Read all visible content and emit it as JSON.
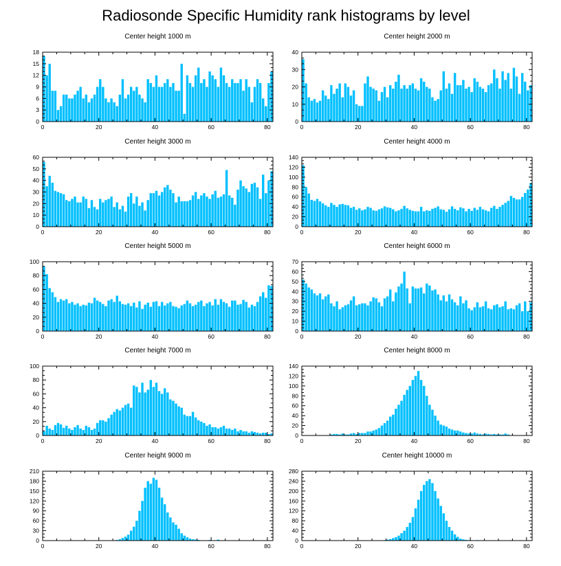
{
  "page_title": "Radiosonde Specific Humidity rank histograms by level",
  "bar_color": "#00BFFF",
  "chart_data": [
    {
      "type": "bar",
      "title": "Center height 1000 m",
      "xlim": [
        0,
        82
      ],
      "ylim": [
        0,
        18
      ],
      "xticks": [
        0,
        20,
        40,
        60,
        80
      ],
      "yticks": [
        0,
        3,
        6,
        9,
        12,
        15,
        18
      ],
      "values": [
        17,
        12,
        15,
        8,
        8,
        3,
        4,
        7,
        7,
        6,
        6,
        7,
        8,
        9,
        6,
        7,
        5,
        6,
        7,
        9,
        11,
        9,
        6,
        5,
        6,
        5,
        4,
        7,
        11,
        6,
        7,
        9,
        8,
        9,
        7,
        6,
        5,
        11,
        10,
        9,
        12,
        9,
        9,
        10,
        11,
        9,
        10,
        8,
        8,
        15,
        2,
        12,
        10,
        9,
        12,
        14,
        10,
        11,
        9,
        13,
        12,
        11,
        9,
        14,
        12,
        10,
        9,
        11,
        10,
        10,
        11,
        8,
        11,
        9,
        5,
        9,
        11,
        10,
        6,
        4,
        10,
        13
      ]
    },
    {
      "type": "bar",
      "title": "Center height 2000 m",
      "xlim": [
        0,
        82
      ],
      "ylim": [
        0,
        40
      ],
      "xticks": [
        0,
        20,
        40,
        60,
        80
      ],
      "yticks": [
        0,
        10,
        20,
        30,
        40
      ],
      "values": [
        36,
        22,
        14,
        12,
        13,
        11,
        12,
        18,
        15,
        13,
        21,
        16,
        19,
        22,
        14,
        22,
        20,
        15,
        18,
        10,
        9,
        9,
        22,
        26,
        20,
        19,
        18,
        12,
        17,
        20,
        14,
        21,
        19,
        23,
        27,
        19,
        21,
        19,
        21,
        22,
        19,
        18,
        25,
        23,
        20,
        19,
        14,
        12,
        13,
        18,
        29,
        19,
        22,
        16,
        28,
        21,
        21,
        24,
        19,
        20,
        17,
        25,
        23,
        20,
        19,
        17,
        21,
        22,
        30,
        25,
        19,
        29,
        24,
        28,
        19,
        31,
        26,
        16,
        28,
        23,
        18,
        21
      ]
    },
    {
      "type": "bar",
      "title": "Center height 3000 m",
      "xlim": [
        0,
        82
      ],
      "ylim": [
        0,
        60
      ],
      "xticks": [
        0,
        20,
        40,
        60,
        80
      ],
      "yticks": [
        0,
        10,
        20,
        30,
        40,
        50,
        60
      ],
      "values": [
        56,
        35,
        44,
        38,
        31,
        30,
        29,
        28,
        23,
        22,
        24,
        26,
        21,
        21,
        26,
        24,
        16,
        23,
        17,
        15,
        24,
        21,
        23,
        24,
        26,
        17,
        21,
        15,
        18,
        13,
        26,
        29,
        20,
        26,
        18,
        21,
        14,
        23,
        29,
        29,
        31,
        27,
        30,
        34,
        36,
        32,
        29,
        21,
        26,
        22,
        22,
        22,
        23,
        27,
        30,
        24,
        27,
        29,
        26,
        24,
        28,
        31,
        25,
        26,
        28,
        49,
        27,
        25,
        19,
        32,
        40,
        35,
        33,
        30,
        37,
        38,
        34,
        24,
        45,
        29,
        40,
        48
      ]
    },
    {
      "type": "bar",
      "title": "Center height 4000 m",
      "xlim": [
        0,
        82
      ],
      "ylim": [
        0,
        140
      ],
      "xticks": [
        0,
        20,
        40,
        60,
        80
      ],
      "yticks": [
        0,
        20,
        40,
        60,
        80,
        100,
        120,
        140
      ],
      "values": [
        124,
        80,
        67,
        54,
        52,
        56,
        51,
        47,
        43,
        40,
        48,
        44,
        40,
        45,
        46,
        44,
        43,
        38,
        40,
        34,
        37,
        33,
        35,
        40,
        38,
        33,
        32,
        35,
        37,
        41,
        39,
        38,
        35,
        31,
        33,
        36,
        42,
        37,
        34,
        32,
        31,
        31,
        40,
        31,
        33,
        32,
        36,
        38,
        41,
        35,
        34,
        30,
        35,
        41,
        36,
        33,
        39,
        37,
        31,
        36,
        32,
        38,
        34,
        40,
        35,
        33,
        31,
        38,
        42,
        36,
        40,
        44,
        48,
        52,
        62,
        58,
        55,
        55,
        60,
        68,
        75,
        88
      ]
    },
    {
      "type": "bar",
      "title": "Center height 5000 m",
      "xlim": [
        0,
        82
      ],
      "ylim": [
        0,
        100
      ],
      "xticks": [
        0,
        20,
        40,
        60,
        80
      ],
      "yticks": [
        0,
        20,
        40,
        60,
        80,
        100
      ],
      "values": [
        93,
        82,
        62,
        56,
        49,
        42,
        46,
        44,
        46,
        40,
        42,
        38,
        40,
        36,
        38,
        37,
        41,
        40,
        48,
        44,
        42,
        39,
        36,
        44,
        46,
        42,
        51,
        43,
        39,
        38,
        40,
        36,
        41,
        34,
        43,
        32,
        38,
        41,
        35,
        42,
        43,
        36,
        42,
        37,
        40,
        42,
        36,
        35,
        33,
        37,
        39,
        44,
        40,
        36,
        38,
        42,
        44,
        36,
        40,
        42,
        37,
        46,
        38,
        46,
        42,
        40,
        35,
        44,
        44,
        38,
        39,
        45,
        42,
        34,
        38,
        36,
        42,
        50,
        56,
        48,
        66,
        65
      ]
    },
    {
      "type": "bar",
      "title": "Center height 6000 m",
      "xlim": [
        0,
        82
      ],
      "ylim": [
        0,
        70
      ],
      "xticks": [
        0,
        20,
        40,
        60,
        80
      ],
      "yticks": [
        0,
        10,
        20,
        30,
        40,
        50,
        60,
        70
      ],
      "values": [
        52,
        48,
        44,
        42,
        38,
        36,
        38,
        32,
        35,
        37,
        28,
        25,
        30,
        22,
        24,
        26,
        27,
        31,
        35,
        26,
        27,
        28,
        28,
        26,
        30,
        34,
        33,
        29,
        25,
        33,
        35,
        42,
        30,
        39,
        45,
        48,
        60,
        43,
        28,
        45,
        43,
        43,
        44,
        38,
        48,
        46,
        41,
        42,
        37,
        31,
        36,
        30,
        37,
        32,
        29,
        26,
        35,
        28,
        31,
        23,
        21,
        24,
        29,
        24,
        25,
        30,
        23,
        22,
        26,
        27,
        24,
        25,
        30,
        22,
        23,
        22,
        26,
        28,
        20,
        30,
        20,
        29
      ]
    },
    {
      "type": "bar",
      "title": "Center height 7000 m",
      "xlim": [
        0,
        82
      ],
      "ylim": [
        0,
        100
      ],
      "xticks": [
        0,
        20,
        40,
        60,
        80
      ],
      "yticks": [
        0,
        20,
        40,
        60,
        80,
        100
      ],
      "values": [
        6,
        14,
        10,
        8,
        15,
        18,
        16,
        11,
        14,
        10,
        8,
        12,
        15,
        10,
        8,
        14,
        12,
        8,
        10,
        18,
        22,
        22,
        20,
        25,
        30,
        34,
        38,
        36,
        40,
        44,
        46,
        40,
        72,
        70,
        62,
        76,
        62,
        66,
        80,
        70,
        76,
        64,
        60,
        68,
        62,
        52,
        50,
        46,
        42,
        40,
        30,
        28,
        28,
        34,
        26,
        22,
        20,
        18,
        14,
        16,
        12,
        12,
        10,
        12,
        14,
        10,
        10,
        8,
        10,
        6,
        8,
        6,
        6,
        4,
        6,
        5,
        4,
        3,
        4,
        4,
        2,
        3
      ]
    },
    {
      "type": "bar",
      "title": "Center height 8000 m",
      "xlim": [
        0,
        82
      ],
      "ylim": [
        0,
        140
      ],
      "xticks": [
        0,
        20,
        40,
        60,
        80
      ],
      "yticks": [
        0,
        20,
        40,
        60,
        80,
        100,
        120,
        140
      ],
      "values": [
        0,
        0,
        0,
        0,
        0,
        0,
        0,
        0,
        0,
        0,
        2,
        3,
        3,
        2,
        4,
        2,
        2,
        4,
        5,
        3,
        5,
        5,
        5,
        8,
        8,
        10,
        12,
        15,
        20,
        25,
        30,
        38,
        42,
        54,
        62,
        70,
        82,
        92,
        100,
        112,
        120,
        130,
        112,
        100,
        80,
        62,
        52,
        40,
        30,
        22,
        20,
        18,
        14,
        12,
        10,
        10,
        8,
        6,
        5,
        4,
        4,
        6,
        4,
        3,
        2,
        4,
        3,
        2,
        3,
        2,
        2,
        2,
        4,
        2,
        0,
        0,
        0,
        0,
        0,
        0,
        0,
        0
      ]
    },
    {
      "type": "bar",
      "title": "Center height 9000 m",
      "xlim": [
        0,
        82
      ],
      "ylim": [
        0,
        210
      ],
      "xticks": [
        0,
        20,
        40,
        60,
        80
      ],
      "yticks": [
        0,
        30,
        60,
        90,
        120,
        150,
        180,
        210
      ],
      "values": [
        0,
        0,
        0,
        0,
        0,
        0,
        0,
        0,
        0,
        0,
        0,
        0,
        0,
        0,
        0,
        0,
        0,
        0,
        0,
        0,
        0,
        0,
        0,
        0,
        0,
        1,
        2,
        4,
        8,
        12,
        18,
        30,
        42,
        60,
        90,
        120,
        160,
        180,
        172,
        190,
        184,
        160,
        130,
        110,
        85,
        70,
        55,
        48,
        36,
        22,
        15,
        10,
        6,
        4,
        3,
        2,
        1,
        1,
        1,
        2,
        1,
        1,
        3,
        1,
        1,
        1,
        1,
        0,
        0,
        0,
        0,
        0,
        0,
        0,
        0,
        0,
        0,
        0,
        0,
        0,
        0,
        0
      ]
    },
    {
      "type": "bar",
      "title": "Center height 10000 m",
      "xlim": [
        0,
        82
      ],
      "ylim": [
        0,
        280
      ],
      "xticks": [
        0,
        20,
        40,
        60,
        80
      ],
      "yticks": [
        0,
        40,
        80,
        120,
        160,
        200,
        240,
        280
      ],
      "values": [
        0,
        0,
        0,
        0,
        0,
        0,
        0,
        0,
        0,
        0,
        0,
        0,
        0,
        0,
        0,
        0,
        0,
        0,
        0,
        0,
        0,
        0,
        0,
        0,
        0,
        0,
        0,
        0,
        0,
        2,
        4,
        6,
        10,
        14,
        20,
        30,
        40,
        55,
        72,
        95,
        130,
        165,
        200,
        225,
        240,
        248,
        232,
        200,
        170,
        140,
        110,
        80,
        55,
        40,
        25,
        15,
        8,
        5,
        3,
        2,
        1,
        1,
        2,
        1,
        1,
        1,
        0,
        0,
        0,
        0,
        0,
        0,
        0,
        0,
        0,
        0,
        0,
        0,
        0,
        0,
        0,
        0
      ]
    }
  ]
}
